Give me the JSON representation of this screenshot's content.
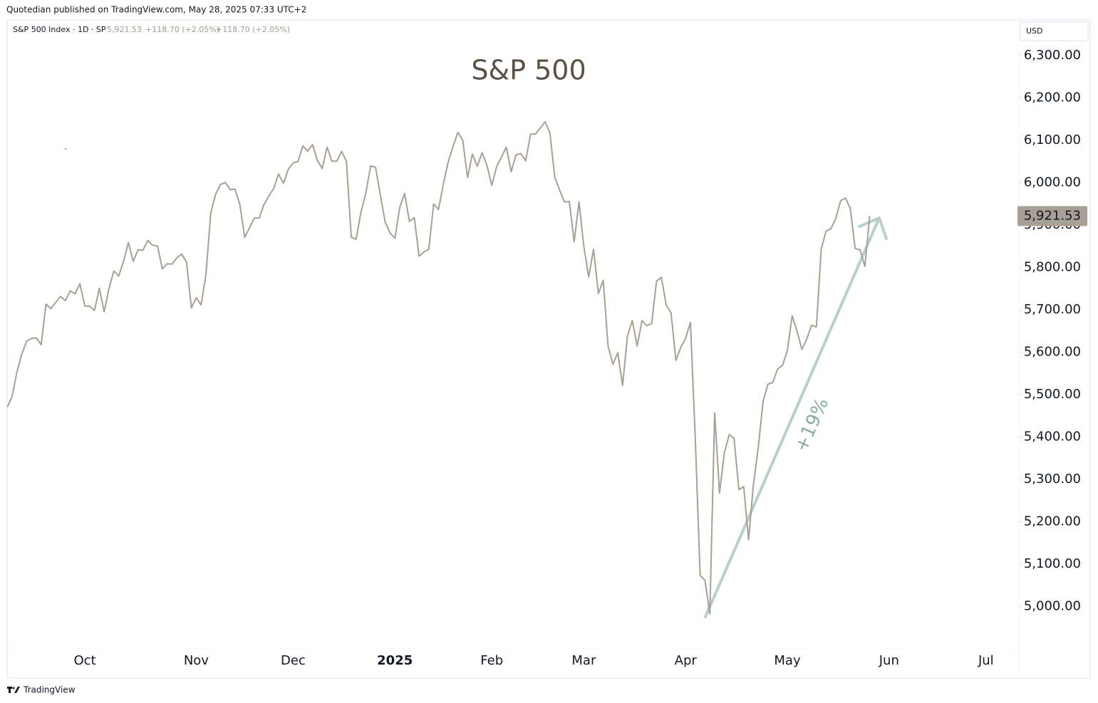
{
  "publisher": "Quotedian published on TradingView.com, May 28, 2025 07:33 UTC+2",
  "header": {
    "symbol": "S&P 500 Index · 1D · SP",
    "price": "5,921.53",
    "change": "+118.70 (+2.05%)",
    "change_repeat": "+118.70 (+2.05%)"
  },
  "currency": "USD",
  "footer": "TradingView",
  "chart_data": {
    "type": "line",
    "title": "S&P 500",
    "annotation": "+19%",
    "categories": [
      null,
      null,
      null,
      null,
      null,
      null,
      null,
      null,
      null,
      null,
      null,
      null,
      null,
      null,
      null,
      null,
      "Oct",
      null,
      null,
      null,
      null,
      null,
      null,
      null,
      null,
      null,
      null,
      null,
      null,
      null,
      null,
      null,
      null,
      null,
      null,
      null,
      null,
      null,
      null,
      "Nov",
      null,
      null,
      null,
      null,
      null,
      null,
      null,
      null,
      null,
      null,
      null,
      null,
      null,
      null,
      null,
      null,
      null,
      null,
      null,
      "Dec",
      null,
      null,
      null,
      null,
      null,
      null,
      null,
      null,
      null,
      null,
      null,
      null,
      null,
      null,
      null,
      null,
      null,
      null,
      null,
      null,
      "2025",
      null,
      null,
      null,
      null,
      null,
      null,
      null,
      null,
      null,
      null,
      null,
      null,
      null,
      null,
      null,
      null,
      null,
      null,
      null,
      "Feb",
      null,
      null,
      null,
      null,
      null,
      null,
      null,
      null,
      null,
      null,
      null,
      null,
      null,
      null,
      null,
      null,
      null,
      null,
      "Mar",
      null,
      null,
      null,
      null,
      null,
      null,
      null,
      null,
      null,
      null,
      null,
      null,
      null,
      null,
      null,
      null,
      null,
      null,
      null,
      null,
      "Apr",
      null,
      null,
      null,
      null,
      null,
      null,
      null,
      null,
      null,
      null,
      null,
      null,
      null,
      null,
      null,
      null,
      null,
      null,
      null,
      null,
      "May",
      null,
      null,
      null,
      null,
      null,
      null,
      null,
      null,
      null,
      null,
      null,
      null,
      null,
      null,
      null,
      null,
      null,
      null,
      null,
      null,
      "Jun",
      null,
      null,
      null,
      null,
      null,
      null,
      null,
      null,
      null,
      null,
      null,
      null,
      null,
      null,
      null,
      null,
      null,
      null,
      null,
      "Jul"
    ],
    "series": [
      {
        "name": "S&P 500 Index",
        "color": "#a89f95",
        "values": [
          5471,
          5496,
          5554,
          5596,
          5626,
          5633,
          5634,
          5618,
          5714,
          5703,
          5718,
          5732,
          5722,
          5745,
          5738,
          5762,
          5709,
          5709,
          5699,
          5751,
          5696,
          5751,
          5792,
          5780,
          5815,
          5859,
          5815,
          5842,
          5841,
          5864,
          5853,
          5851,
          5797,
          5809,
          5808,
          5823,
          5832,
          5813,
          5705,
          5729,
          5712,
          5783,
          5929,
          5973,
          5996,
          6001,
          5984,
          5985,
          5949,
          5871,
          5894,
          5917,
          5917,
          5949,
          5969,
          5987,
          6021,
          5999,
          6032,
          6047,
          6050,
          6087,
          6075,
          6090,
          6053,
          6034,
          6084,
          6051,
          6051,
          6074,
          6051,
          5872,
          5867,
          5931,
          5975,
          6040,
          6037,
          5971,
          5907,
          5882,
          5869,
          5942,
          5975,
          5909,
          5918,
          5827,
          5837,
          5843,
          5950,
          5937,
          5997,
          6049,
          6086,
          6119,
          6101,
          6012,
          6068,
          6039,
          6071,
          6041,
          5994,
          6038,
          6061,
          6084,
          6026,
          6066,
          6069,
          6052,
          6115,
          6115,
          6129,
          6144,
          6118,
          6013,
          5983,
          5955,
          5956,
          5861,
          5955,
          5850,
          5778,
          5843,
          5739,
          5770,
          5615,
          5572,
          5599,
          5522,
          5639,
          5675,
          5615,
          5675,
          5663,
          5668,
          5768,
          5777,
          5712,
          5693,
          5581,
          5612,
          5633,
          5671,
          5397,
          5074,
          5062,
          4983,
          5457,
          5268,
          5363,
          5406,
          5397,
          5276,
          5283,
          5158,
          5288,
          5376,
          5485,
          5525,
          5529,
          5561,
          5569,
          5604,
          5686,
          5650,
          5607,
          5631,
          5664,
          5660,
          5844,
          5886,
          5892,
          5916,
          5958,
          5964,
          5940,
          5845,
          5842,
          5803,
          5921.53,
          null,
          null,
          null,
          null,
          null,
          null,
          null,
          null,
          null,
          null,
          null,
          null,
          null,
          null,
          null,
          null,
          null,
          null,
          null,
          null,
          null,
          null,
          null,
          null
        ]
      }
    ],
    "last_value_label": "5,921.53",
    "ylim": [
      4902,
      6381
    ],
    "yticks": [
      {
        "value": 5000,
        "label": "5,000.00"
      },
      {
        "value": 5100,
        "label": "5,100.00"
      },
      {
        "value": 5200,
        "label": "5,200.00"
      },
      {
        "value": 5300,
        "label": "5,300.00"
      },
      {
        "value": 5400,
        "label": "5,400.00"
      },
      {
        "value": 5500,
        "label": "5,500.00"
      },
      {
        "value": 5600,
        "label": "5,600.00"
      },
      {
        "value": 5700,
        "label": "5,700.00"
      },
      {
        "value": 5800,
        "label": "5,800.00"
      },
      {
        "value": 5900,
        "label": "5,900.00"
      },
      {
        "value": 6000,
        "label": "6,000.00"
      },
      {
        "value": 6100,
        "label": "6,100.00"
      },
      {
        "value": 6200,
        "label": "6,200.00"
      },
      {
        "value": 6300,
        "label": "6,300.00"
      }
    ],
    "grid": false
  }
}
